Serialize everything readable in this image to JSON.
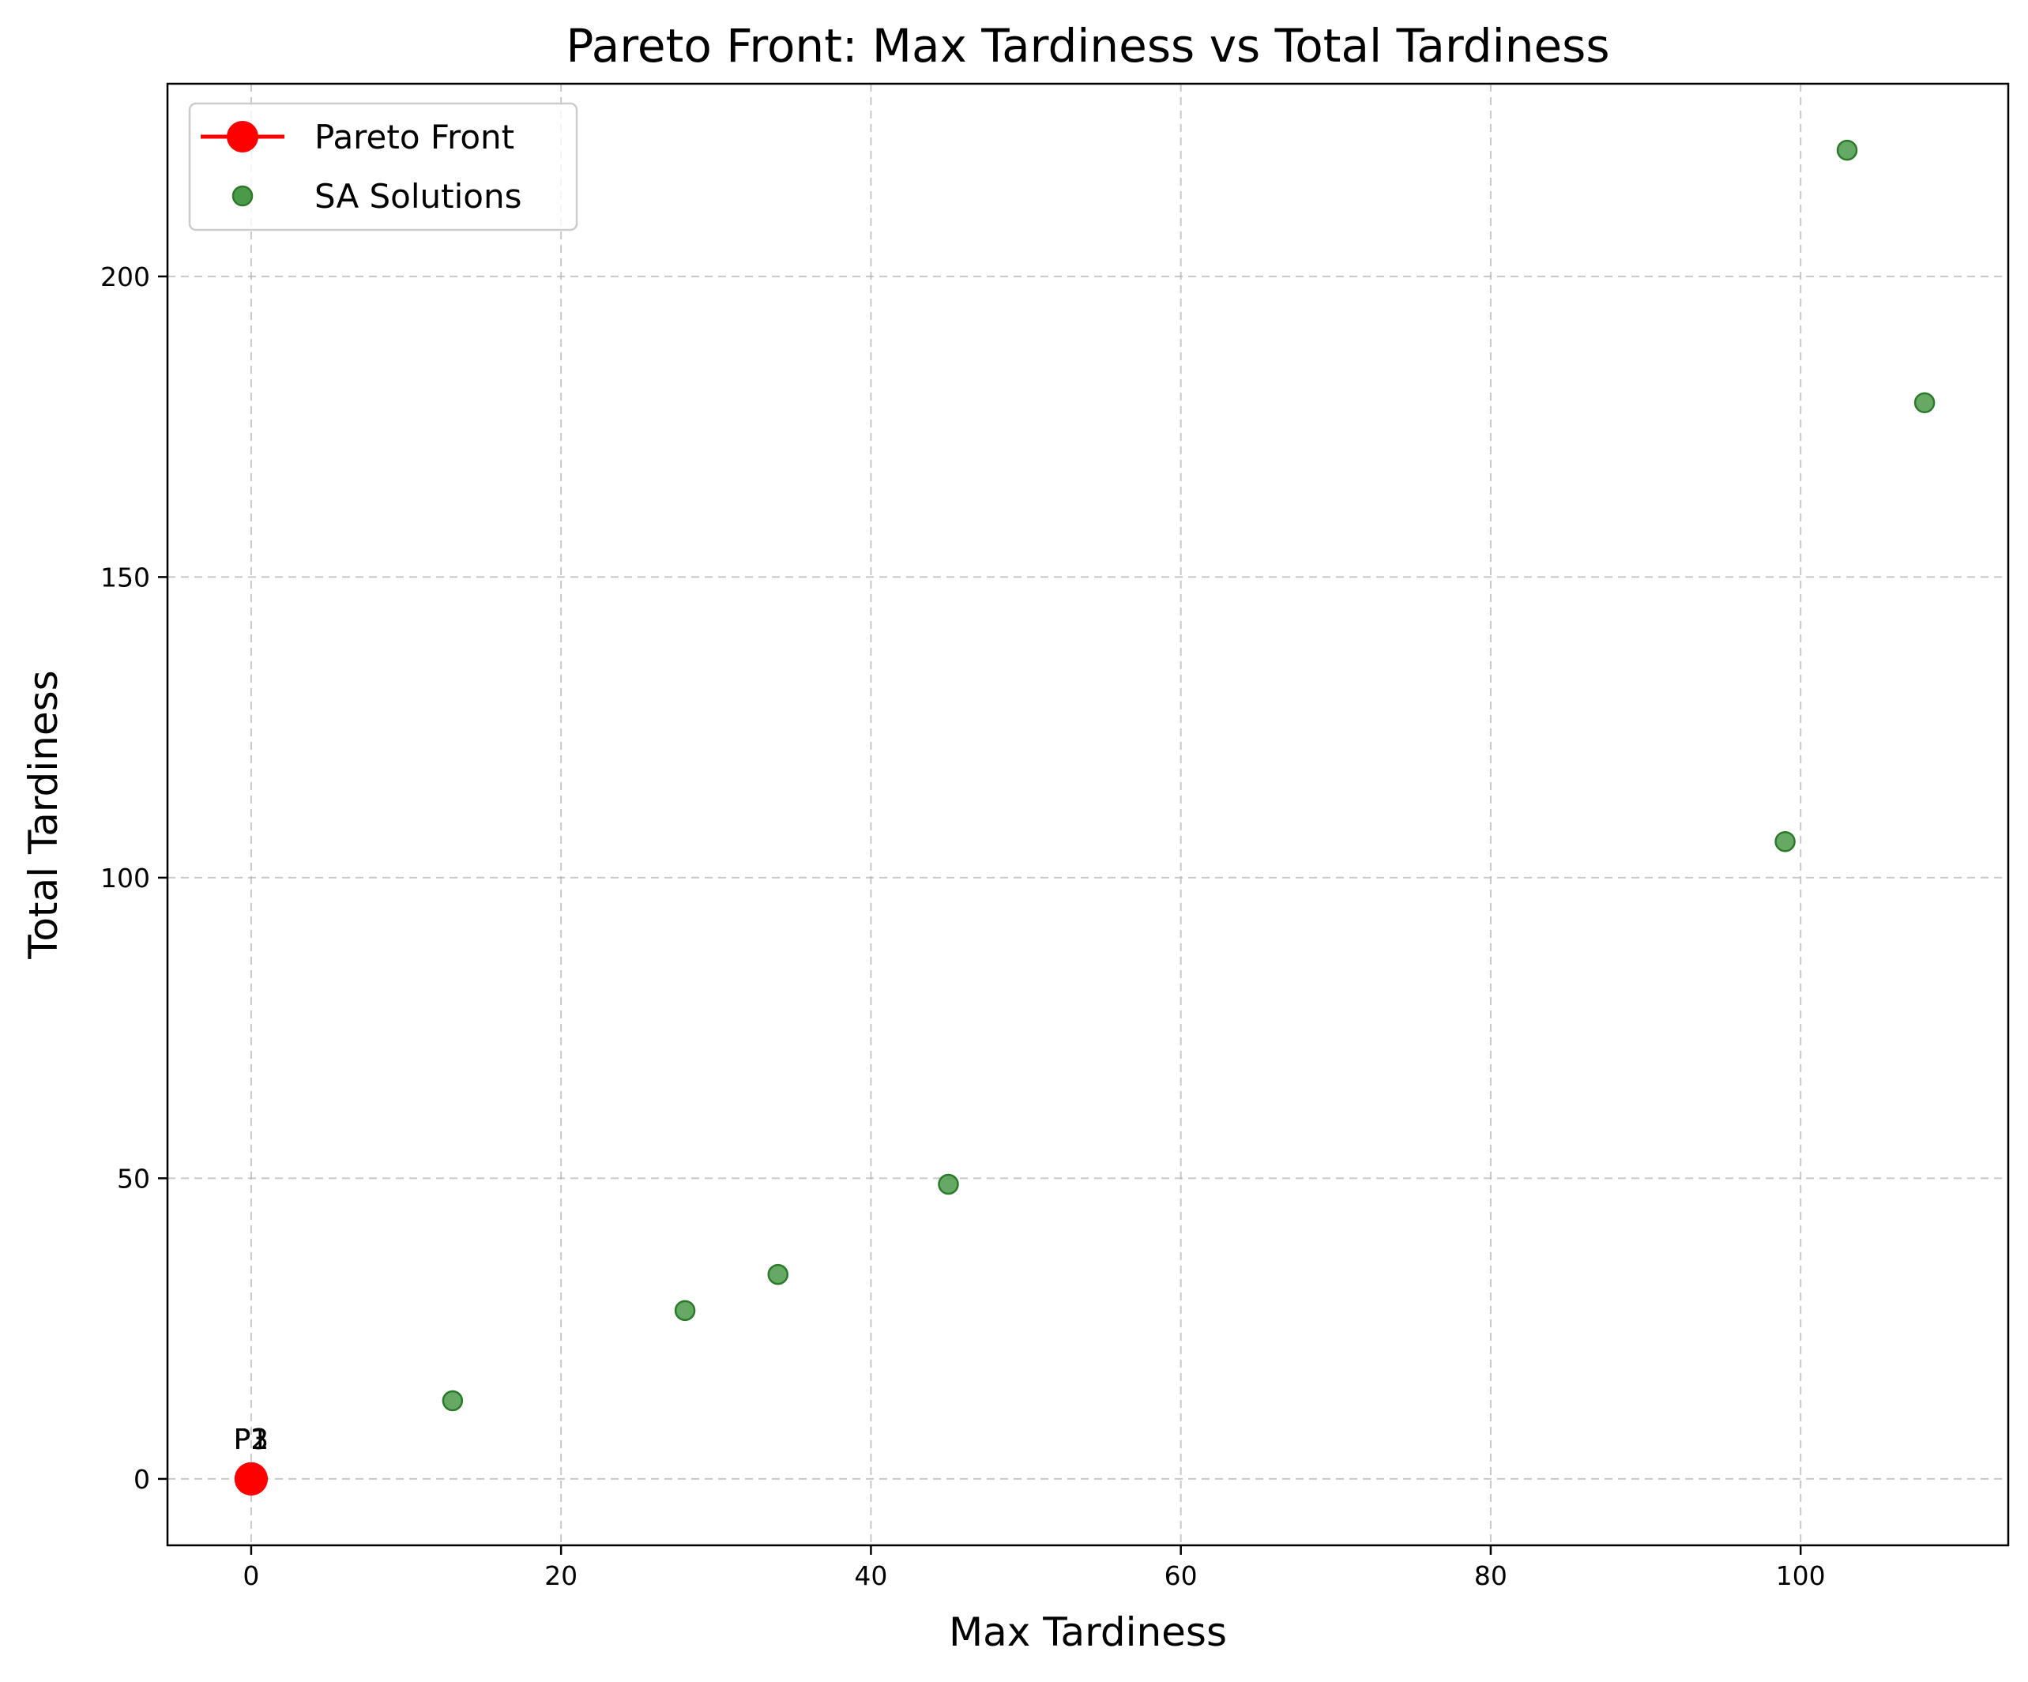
{
  "chart_data": {
    "type": "scatter",
    "title": "Pareto Front: Max Tardiness vs Total Tardiness",
    "xlabel": "Max Tardiness",
    "ylabel": "Total Tardiness",
    "xlim": [
      -5.4,
      113.4
    ],
    "ylim": [
      -11.05,
      232.05
    ],
    "xticks": [
      0,
      20,
      40,
      60,
      80,
      100
    ],
    "yticks": [
      0,
      50,
      100,
      150,
      200
    ],
    "grid": true,
    "legend_position": "top-left",
    "series": [
      {
        "name": "Pareto Front",
        "kind": "line-marker",
        "color": "#ff0000",
        "points": [
          {
            "x": 0,
            "y": 0,
            "label": "P1"
          },
          {
            "x": 0,
            "y": 0,
            "label": "P2"
          },
          {
            "x": 0,
            "y": 0,
            "label": "P3"
          }
        ]
      },
      {
        "name": "SA Solutions",
        "kind": "scatter",
        "color": "#4a9a4a",
        "edge_color": "#2a7a2a",
        "points": [
          {
            "x": 13,
            "y": 13
          },
          {
            "x": 28,
            "y": 28
          },
          {
            "x": 34,
            "y": 34
          },
          {
            "x": 45,
            "y": 49
          },
          {
            "x": 99,
            "y": 106
          },
          {
            "x": 103,
            "y": 221
          },
          {
            "x": 108,
            "y": 179
          }
        ]
      }
    ]
  }
}
